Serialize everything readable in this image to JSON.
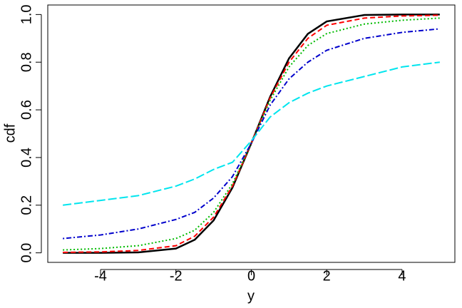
{
  "chart_data": {
    "type": "line",
    "x_label": "y",
    "y_label": "cdf",
    "x": [
      -5,
      -4,
      -3,
      -2,
      -1.5,
      -1,
      -0.5,
      0,
      0.5,
      1,
      1.5,
      2,
      3,
      4,
      5
    ],
    "series": [
      {
        "color": "#000000",
        "dash": "solid",
        "values": [
          0.0,
          0.0,
          0.002,
          0.018,
          0.055,
          0.136,
          0.274,
          0.46,
          0.655,
          0.816,
          0.919,
          0.971,
          0.998,
          1.0,
          1.0
        ]
      },
      {
        "color": "#ff0000",
        "dash": "dashed",
        "values": [
          0.002,
          0.004,
          0.01,
          0.03,
          0.07,
          0.15,
          0.28,
          0.46,
          0.65,
          0.8,
          0.9,
          0.955,
          0.985,
          0.994,
          0.997
        ]
      },
      {
        "color": "#00bb00",
        "dash": "dotted",
        "values": [
          0.012,
          0.018,
          0.03,
          0.06,
          0.095,
          0.17,
          0.29,
          0.46,
          0.64,
          0.78,
          0.87,
          0.92,
          0.96,
          0.976,
          0.985
        ]
      },
      {
        "color": "#0000cc",
        "dash": "dotdash",
        "values": [
          0.06,
          0.075,
          0.1,
          0.14,
          0.17,
          0.23,
          0.32,
          0.46,
          0.62,
          0.73,
          0.8,
          0.85,
          0.9,
          0.925,
          0.94
        ]
      },
      {
        "color": "#00e5ee",
        "dash": "longdash",
        "values": [
          0.2,
          0.22,
          0.24,
          0.28,
          0.31,
          0.35,
          0.38,
          0.47,
          0.57,
          0.63,
          0.67,
          0.7,
          0.74,
          0.78,
          0.8
        ]
      }
    ],
    "xlim": [
      -5.4,
      5.4
    ],
    "ylim": [
      -0.04,
      1.04
    ],
    "xticks": [
      -4,
      -2,
      0,
      2,
      4
    ],
    "yticks": [
      {
        "value": 0,
        "label": "0.0"
      },
      {
        "value": 0.2,
        "label": "0.2"
      },
      {
        "value": 0.4,
        "label": "0.4"
      },
      {
        "value": 0.6,
        "label": "0.6"
      },
      {
        "value": 0.8,
        "label": "0.8"
      },
      {
        "value": 1,
        "label": "1.0"
      }
    ]
  }
}
